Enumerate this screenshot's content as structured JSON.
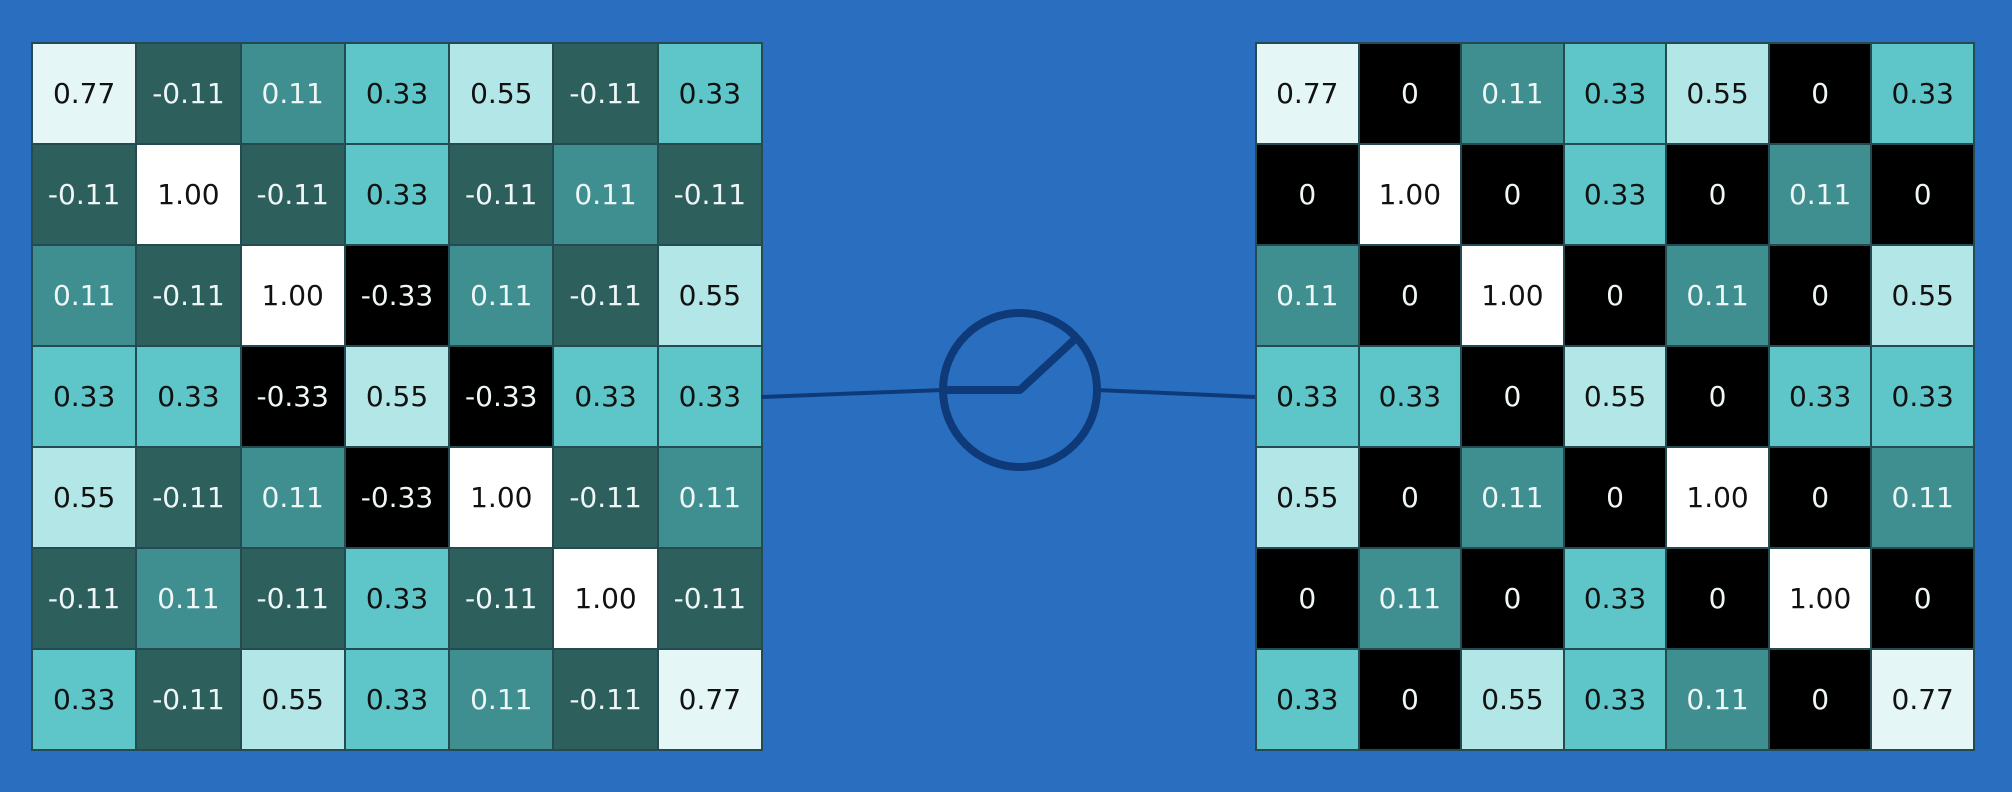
{
  "diagram": {
    "colors": {
      "background": "#2a6fbf",
      "-0.33": "#000000",
      "-0.11": "#2d5f5d",
      "0": "#000000",
      "0.11": "#3f8f90",
      "0.33": "#5ec5c8",
      "0.55": "#b3e6e6",
      "0.77": "#e4f6f6",
      "1.00": "#ffffff",
      "relu_symbol": "#0e3a7a"
    },
    "relu_symbol_icon": "relu-activation-icon",
    "input_matrix": [
      [
        "0.77",
        "-0.11",
        "0.11",
        "0.33",
        "0.55",
        "-0.11",
        "0.33"
      ],
      [
        "-0.11",
        "1.00",
        "-0.11",
        "0.33",
        "-0.11",
        "0.11",
        "-0.11"
      ],
      [
        "0.11",
        "-0.11",
        "1.00",
        "-0.33",
        "0.11",
        "-0.11",
        "0.55"
      ],
      [
        "0.33",
        "0.33",
        "-0.33",
        "0.55",
        "-0.33",
        "0.33",
        "0.33"
      ],
      [
        "0.55",
        "-0.11",
        "0.11",
        "-0.33",
        "1.00",
        "-0.11",
        "0.11"
      ],
      [
        "-0.11",
        "0.11",
        "-0.11",
        "0.33",
        "-0.11",
        "1.00",
        "-0.11"
      ],
      [
        "0.33",
        "-0.11",
        "0.55",
        "0.33",
        "0.11",
        "-0.11",
        "0.77"
      ]
    ],
    "output_matrix": [
      [
        "0.77",
        "0",
        "0.11",
        "0.33",
        "0.55",
        "0",
        "0.33"
      ],
      [
        "0",
        "1.00",
        "0",
        "0.33",
        "0",
        "0.11",
        "0"
      ],
      [
        "0.11",
        "0",
        "1.00",
        "0",
        "0.11",
        "0",
        "0.55"
      ],
      [
        "0.33",
        "0.33",
        "0",
        "0.55",
        "0",
        "0.33",
        "0.33"
      ],
      [
        "0.55",
        "0",
        "0.11",
        "0",
        "1.00",
        "0",
        "0.11"
      ],
      [
        "0",
        "0.11",
        "0",
        "0.33",
        "0",
        "1.00",
        "0"
      ],
      [
        "0.33",
        "0",
        "0.55",
        "0.33",
        "0.11",
        "0",
        "0.77"
      ]
    ]
  }
}
